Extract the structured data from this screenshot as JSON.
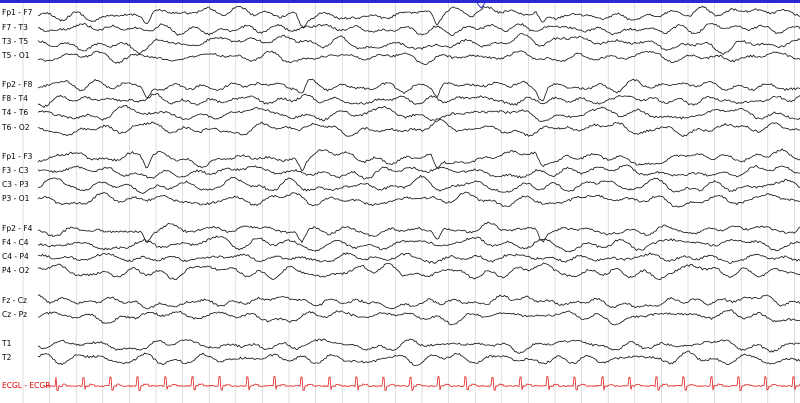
{
  "channels": [
    "Fp1 - F7",
    "F7 - T3",
    "T3 - T5",
    "T5 - O1",
    "Fp2 - F8",
    "F8 - T4",
    "T4 - T6",
    "T6 - O2",
    "Fp1 - F3",
    "F3 - C3",
    "C3 - P3",
    "P3 - O1",
    "Fp2 - F4",
    "F4 - C4",
    "C4 - P4",
    "P4 - O2",
    "Fz - Cz",
    "Cz - Pz",
    "T1",
    "T2"
  ],
  "ecg_channel": "ECGL - ECGR"
}
